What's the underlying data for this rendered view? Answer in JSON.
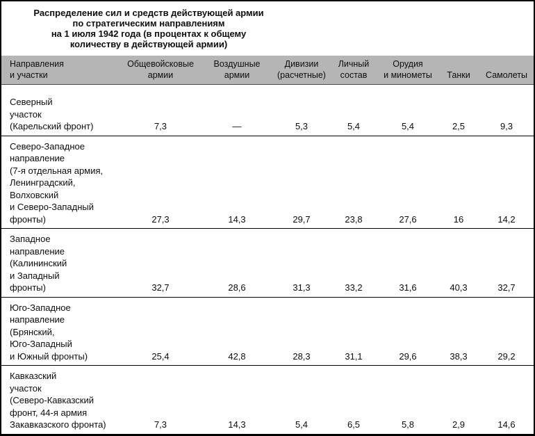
{
  "title": {
    "lines": [
      "Распределение сил и средств действующей армии",
      "по стратегическим направлениям",
      "на 1 июля 1942 года (в процентах к общему",
      "количеству в действующей армии)"
    ]
  },
  "table": {
    "headers": [
      {
        "lines": [
          "Направления",
          "и участки"
        ]
      },
      {
        "lines": [
          "Общевойсковые",
          "армии"
        ]
      },
      {
        "lines": [
          "Воздушные",
          "армии"
        ]
      },
      {
        "lines": [
          "Дивизии",
          "(расчетные)"
        ]
      },
      {
        "lines": [
          "Личный",
          "состав"
        ]
      },
      {
        "lines": [
          "Орудия",
          "и минометы"
        ]
      },
      {
        "lines": [
          "Танки"
        ]
      },
      {
        "lines": [
          "Самолеты"
        ]
      }
    ],
    "rows": [
      {
        "label_lines": [
          "Северный",
          "участок",
          "(Карельский фронт)"
        ],
        "values": [
          "7,3",
          "—",
          "5,3",
          "5,4",
          "5,4",
          "2,5",
          "9,3"
        ]
      },
      {
        "label_lines": [
          "Северо-Западное",
          "направление",
          "(7-я отдельная армия,",
          "Ленинградский,",
          "Волховский",
          "и Северо-Западный",
          "фронты)"
        ],
        "values": [
          "27,3",
          "14,3",
          "29,7",
          "23,8",
          "27,6",
          "16",
          "14,2"
        ]
      },
      {
        "label_lines": [
          "Западное",
          "направление",
          "(Калининский",
          "и Западный",
          "фронты)"
        ],
        "values": [
          "32,7",
          "28,6",
          "31,3",
          "33,2",
          "31,6",
          "40,3",
          "32,7"
        ]
      },
      {
        "label_lines": [
          "Юго-Западное",
          "направление",
          "(Брянский,",
          "Юго-Западный",
          "и Южный фронты)"
        ],
        "values": [
          "25,4",
          "42,8",
          "28,3",
          "31,1",
          "29,6",
          "38,3",
          "29,2"
        ]
      },
      {
        "label_lines": [
          "Кавказский",
          "участок",
          "(Северо-Кавказский",
          "фронт, 44-я армия",
          "Закавказского фронта)"
        ],
        "values": [
          "7,3",
          "14,3",
          "5,4",
          "6,5",
          "5,8",
          "2,9",
          "14,6"
        ]
      }
    ]
  },
  "colors": {
    "header_bg": "#b5b5b5",
    "border": "#000000",
    "background": "#ffffff",
    "text": "#0d0d0d"
  }
}
